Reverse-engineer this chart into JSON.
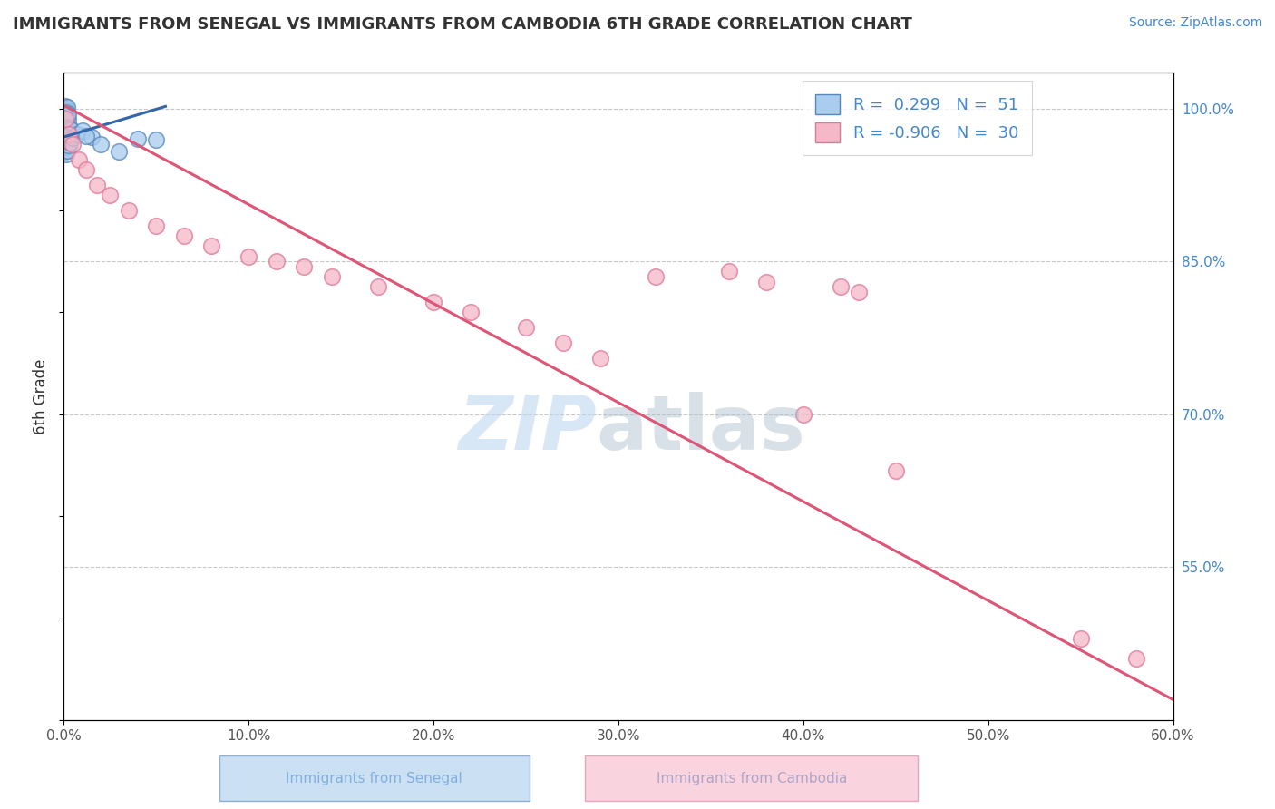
{
  "title": "IMMIGRANTS FROM SENEGAL VS IMMIGRANTS FROM CAMBODIA 6TH GRADE CORRELATION CHART",
  "source": "Source: ZipAtlas.com",
  "ylabel": "6th Grade",
  "xlim": [
    0.0,
    60.0
  ],
  "ylim": [
    40.0,
    103.5
  ],
  "x_ticks": [
    0.0,
    10.0,
    20.0,
    30.0,
    40.0,
    50.0,
    60.0
  ],
  "y_ticks_right": [
    55.0,
    70.0,
    85.0,
    100.0
  ],
  "background_color": "#ffffff",
  "grid_color": "#c8c8c8",
  "senegal_color": "#aaccee",
  "senegal_edge_color": "#5588bb",
  "cambodia_color": "#f5b8c8",
  "cambodia_edge_color": "#dd7799",
  "senegal_line_color": "#3366aa",
  "cambodia_line_color": "#dd5577",
  "legend_R_senegal": "0.299",
  "legend_N_senegal": "51",
  "legend_R_cambodia": "-0.906",
  "legend_N_cambodia": "30",
  "senegal_x": [
    0.05,
    0.07,
    0.1,
    0.13,
    0.15,
    0.18,
    0.2,
    0.05,
    0.08,
    0.12,
    0.15,
    0.18,
    0.22,
    0.25,
    0.08,
    0.1,
    0.12,
    0.15,
    0.18,
    0.2,
    0.25,
    0.28,
    0.3,
    0.35,
    0.4,
    0.05,
    0.07,
    0.09,
    0.11,
    0.14,
    0.17,
    0.2,
    0.23,
    0.26,
    0.3,
    0.05,
    0.08,
    0.11,
    0.15,
    0.2,
    0.25,
    0.35,
    0.5,
    0.7,
    1.0,
    1.5,
    2.0,
    3.0,
    4.0,
    5.0,
    1.2
  ],
  "senegal_y": [
    99.8,
    100.2,
    99.5,
    100.0,
    99.8,
    99.3,
    100.1,
    99.0,
    98.8,
    99.6,
    98.5,
    99.2,
    98.9,
    99.4,
    97.8,
    98.2,
    97.5,
    97.9,
    98.0,
    97.6,
    97.3,
    97.8,
    97.5,
    98.1,
    97.9,
    96.8,
    97.0,
    96.5,
    97.2,
    96.9,
    96.6,
    96.3,
    96.8,
    96.5,
    96.2,
    95.8,
    96.0,
    95.5,
    96.2,
    95.9,
    96.4,
    96.7,
    97.1,
    97.5,
    97.8,
    97.2,
    96.5,
    95.8,
    97.0,
    96.9,
    97.3
  ],
  "cambodia_x": [
    0.1,
    0.3,
    0.5,
    0.8,
    1.2,
    1.8,
    2.5,
    3.5,
    5.0,
    6.5,
    8.0,
    10.0,
    11.5,
    13.0,
    14.5,
    17.0,
    20.0,
    22.0,
    25.0,
    27.0,
    29.0,
    32.0,
    36.0,
    38.0,
    40.0,
    42.0,
    43.0,
    45.0,
    55.0,
    58.0
  ],
  "cambodia_y": [
    99.0,
    97.5,
    96.5,
    95.0,
    94.0,
    92.5,
    91.5,
    90.0,
    88.5,
    87.5,
    86.5,
    85.5,
    85.0,
    84.5,
    83.5,
    82.5,
    81.0,
    80.0,
    78.5,
    77.0,
    75.5,
    83.5,
    84.0,
    83.0,
    70.0,
    82.5,
    82.0,
    64.5,
    48.0,
    46.0
  ],
  "senegal_trendline_x": [
    0.0,
    5.5
  ],
  "senegal_trendline_y": [
    97.2,
    100.2
  ],
  "cambodia_trendline_x": [
    0.0,
    60.0
  ],
  "cambodia_trendline_y": [
    100.3,
    42.0
  ]
}
